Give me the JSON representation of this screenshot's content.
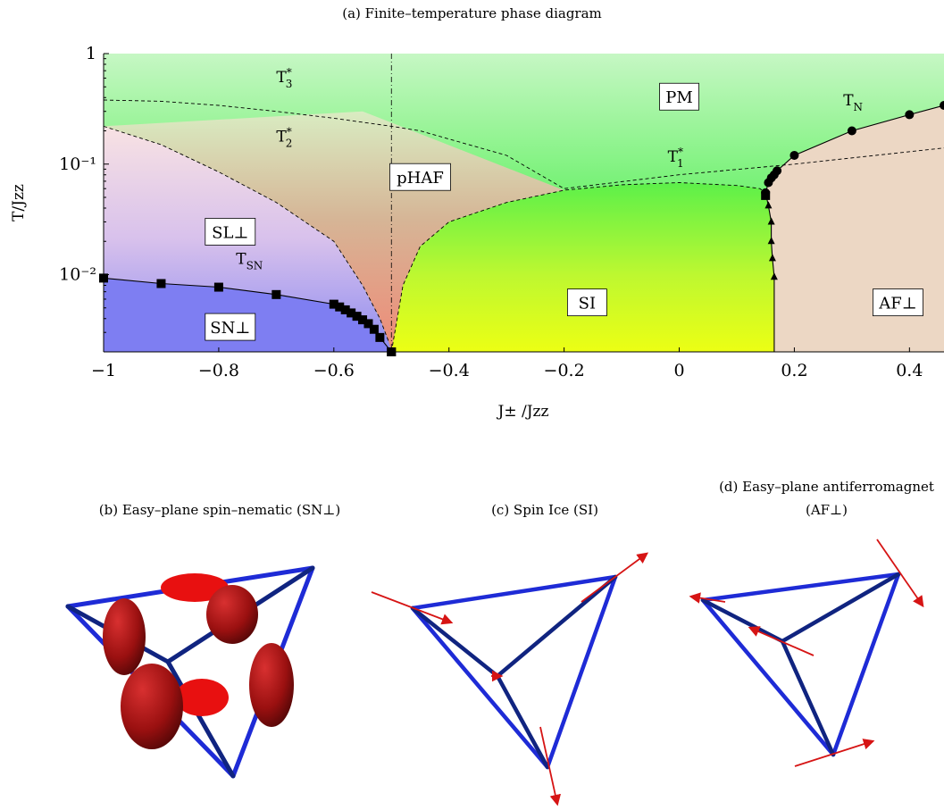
{
  "captions": {
    "a": "(a) Finite–temperature phase diagram",
    "b": "(b) Easy–plane spin–nematic (SN⊥)",
    "c": "(c) Spin Ice (SI)",
    "d_line1": "(d) Easy–plane antiferromagnet",
    "d_line2": "(AF⊥)"
  },
  "chart_data": {
    "type": "line",
    "xlabel": "J± /Jzz",
    "ylabel": "T/Jzz",
    "xlim": [
      -1.0,
      0.46
    ],
    "ylim": [
      0.002,
      1.0
    ],
    "yscale": "log",
    "x_ticks": [
      {
        "v": -1.0,
        "label": "−1"
      },
      {
        "v": -0.8,
        "label": "−0.8"
      },
      {
        "v": -0.6,
        "label": "−0.6"
      },
      {
        "v": -0.4,
        "label": "−0.4"
      },
      {
        "v": -0.2,
        "label": "−0.2"
      },
      {
        "v": 0.0,
        "label": "0"
      },
      {
        "v": 0.2,
        "label": "0.2"
      },
      {
        "v": 0.4,
        "label": "0.4"
      }
    ],
    "y_ticks": [
      {
        "v": 1.0,
        "label": "1"
      },
      {
        "v": 0.1,
        "label": "10⁻¹"
      },
      {
        "v": 0.01,
        "label": "10⁻²"
      }
    ],
    "phases": [
      {
        "label": "PM",
        "x": 0.0,
        "y": 0.4
      },
      {
        "label": "pHAF",
        "x": -0.45,
        "y": 0.075
      },
      {
        "label": "SL⊥",
        "x": -0.78,
        "y": 0.024
      },
      {
        "label": "SN⊥",
        "x": -0.78,
        "y": 0.0033
      },
      {
        "label": "SI",
        "x": -0.16,
        "y": 0.0055
      },
      {
        "label": "AF⊥",
        "x": 0.38,
        "y": 0.0055
      }
    ],
    "curve_labels": [
      {
        "text": "T",
        "sub": "3",
        "sup": "*",
        "x": -0.7,
        "y": 0.55
      },
      {
        "text": "T",
        "sub": "2",
        "sup": "*",
        "x": -0.7,
        "y": 0.16
      },
      {
        "text": "T",
        "sub": "1",
        "sup": "*",
        "x": -0.02,
        "y": 0.105
      },
      {
        "text": "T",
        "sub": "N",
        "sup": "",
        "x": 0.285,
        "y": 0.34
      },
      {
        "text": "T",
        "sub": "SN",
        "sup": "",
        "x": -0.77,
        "y": 0.0125
      }
    ],
    "series": [
      {
        "name": "T3*",
        "style": "dashed",
        "x": [
          -1.0,
          -0.9,
          -0.8,
          -0.7,
          -0.6,
          -0.5,
          -0.45,
          -0.3,
          -0.2,
          0.0,
          0.2,
          0.46
        ],
        "y": [
          0.38,
          0.37,
          0.34,
          0.3,
          0.26,
          0.22,
          0.2,
          0.12,
          0.06,
          0.08,
          0.1,
          0.14
        ]
      },
      {
        "name": "T2*",
        "style": "dashed",
        "x": [
          -1.0,
          -0.9,
          -0.8,
          -0.7,
          -0.6,
          -0.55,
          -0.52,
          -0.505
        ],
        "y": [
          0.22,
          0.15,
          0.085,
          0.045,
          0.02,
          0.008,
          0.004,
          0.0025
        ]
      },
      {
        "name": "T1* left",
        "style": "dashed",
        "x": [
          -0.5,
          -0.48,
          -0.45,
          -0.4,
          -0.3,
          -0.2,
          -0.1,
          0.0,
          0.1,
          0.14,
          0.15
        ],
        "y": [
          0.002,
          0.008,
          0.018,
          0.03,
          0.045,
          0.058,
          0.065,
          0.068,
          0.064,
          0.06,
          0.055
        ]
      },
      {
        "name": "TSN",
        "style": "solid",
        "marker": "square",
        "x": [
          -1.0,
          -0.9,
          -0.8,
          -0.7,
          -0.6,
          -0.59,
          -0.58,
          -0.57,
          -0.56,
          -0.55,
          -0.54,
          -0.53,
          -0.52,
          -0.5
        ],
        "y": [
          0.0093,
          0.0083,
          0.0077,
          0.0066,
          0.0054,
          0.0051,
          0.0048,
          0.0045,
          0.0042,
          0.0039,
          0.0036,
          0.0032,
          0.0027,
          0.002
        ]
      },
      {
        "name": "TN",
        "style": "solid",
        "marker": "circle",
        "x": [
          0.15,
          0.155,
          0.16,
          0.165,
          0.17,
          0.2,
          0.3,
          0.4,
          0.46
        ],
        "y": [
          0.055,
          0.068,
          0.075,
          0.08,
          0.087,
          0.12,
          0.2,
          0.28,
          0.34
        ]
      },
      {
        "name": "SI-AF boundary",
        "style": "solid",
        "marker": "triangle",
        "x": [
          0.15,
          0.155,
          0.16,
          0.16,
          0.162,
          0.165,
          0.165
        ],
        "y": [
          0.055,
          0.042,
          0.03,
          0.02,
          0.014,
          0.0095,
          0.002
        ]
      }
    ],
    "markers_extra": [
      {
        "shape": "square",
        "x": 0.15,
        "y": 0.052
      },
      {
        "shape": "square",
        "x": -0.5,
        "y": 0.002
      }
    ],
    "colors": {
      "pm": "#5cf05c",
      "si": "#e8ff1c",
      "af": "#ecd7c4",
      "sn": "#7e7ef2",
      "sl_top": "#f4dde0",
      "sl_bottom": "#a9a6e2",
      "phaf": "#ec8f7f",
      "marker": "#000000"
    }
  },
  "figures": {
    "edge_color": "#1e2bd6",
    "edge_dark": "#102480",
    "spin_color": "#d61414"
  }
}
